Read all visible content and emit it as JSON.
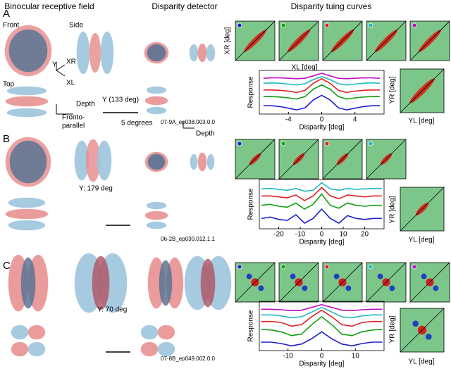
{
  "headers": [
    "Binocular receptive field",
    "Disparity detector",
    "Disparity tuing curves"
  ],
  "panels": [
    {
      "label": "A",
      "views": [
        "Front",
        "Side",
        "Top"
      ],
      "axes": [
        "Y",
        "XR",
        "XL"
      ],
      "yaw": "Y (133 deg)",
      "depth": [
        "Depth",
        "Depth"
      ],
      "fronto": [
        "Fronto-",
        "parallel"
      ],
      "scale": "5 degrees",
      "cell": "07-9A_ep038.003.0.0",
      "map_labels": [
        "XR [deg]",
        "XL [deg]",
        "YR [deg]",
        "YL [deg]"
      ]
    },
    {
      "label": "B",
      "yaw": "Y: 179 deg",
      "cell": "06-2B_ep030.012.1.1",
      "map_labels": [
        "YR [deg]",
        "YL [deg]"
      ]
    },
    {
      "label": "C",
      "yaw": "Y: 70 deg",
      "cell": "07-8B_ep049.002.0.0",
      "map_labels": [
        "YR [deg]",
        "YL [deg]"
      ]
    }
  ],
  "chart_data": [
    {
      "type": "line",
      "xlabel": "Disparity [deg]",
      "ylabel": "Response",
      "xlim": [
        -7.5,
        7.5
      ],
      "xticks": [
        -4,
        0,
        4
      ],
      "ylim": [
        0,
        1.05
      ],
      "x": [
        -7,
        -6,
        -5,
        -4,
        -3,
        -2,
        -1,
        0,
        1,
        2,
        3,
        4,
        5,
        6,
        7
      ],
      "series": [
        {
          "color": "#c010c0",
          "values": [
            0.86,
            0.87,
            0.87,
            0.86,
            0.85,
            0.86,
            0.92,
            0.98,
            0.92,
            0.86,
            0.85,
            0.86,
            0.87,
            0.87,
            0.86
          ]
        },
        {
          "color": "#20b8c0",
          "values": [
            0.74,
            0.75,
            0.74,
            0.72,
            0.7,
            0.73,
            0.83,
            0.9,
            0.83,
            0.73,
            0.7,
            0.72,
            0.74,
            0.75,
            0.74
          ]
        },
        {
          "color": "#e02020",
          "values": [
            0.58,
            0.58,
            0.57,
            0.55,
            0.52,
            0.57,
            0.74,
            0.85,
            0.74,
            0.57,
            0.52,
            0.55,
            0.57,
            0.58,
            0.58
          ]
        },
        {
          "color": "#10a010",
          "values": [
            0.42,
            0.42,
            0.41,
            0.39,
            0.36,
            0.42,
            0.6,
            0.7,
            0.6,
            0.42,
            0.36,
            0.39,
            0.41,
            0.42,
            0.42
          ]
        },
        {
          "color": "#2020d0",
          "values": [
            0.2,
            0.2,
            0.18,
            0.14,
            0.1,
            0.15,
            0.34,
            0.45,
            0.34,
            0.15,
            0.1,
            0.14,
            0.18,
            0.2,
            0.2
          ]
        }
      ]
    },
    {
      "type": "line",
      "xlabel": "Disparity [deg]",
      "ylabel": "Response",
      "xlim": [
        -29,
        29
      ],
      "xticks": [
        -20,
        -10,
        0,
        10,
        20
      ],
      "ylim": [
        0,
        1.05
      ],
      "x": [
        -28,
        -24,
        -20,
        -16,
        -12,
        -8,
        -4,
        0,
        4,
        8,
        12,
        16,
        20,
        24,
        28
      ],
      "series": [
        {
          "color": "#20b8c0",
          "values": [
            0.85,
            0.86,
            0.84,
            0.82,
            0.86,
            0.8,
            0.82,
            0.98,
            0.85,
            0.82,
            0.86,
            0.84,
            0.85,
            0.86,
            0.86
          ]
        },
        {
          "color": "#e02020",
          "values": [
            0.7,
            0.7,
            0.68,
            0.66,
            0.72,
            0.6,
            0.7,
            0.88,
            0.7,
            0.64,
            0.72,
            0.7,
            0.68,
            0.7,
            0.7
          ]
        },
        {
          "color": "#10a010",
          "values": [
            0.5,
            0.52,
            0.48,
            0.46,
            0.55,
            0.42,
            0.52,
            0.74,
            0.5,
            0.44,
            0.55,
            0.5,
            0.48,
            0.5,
            0.5
          ]
        },
        {
          "color": "#2020d0",
          "values": [
            0.22,
            0.25,
            0.2,
            0.18,
            0.3,
            0.12,
            0.22,
            0.42,
            0.22,
            0.12,
            0.28,
            0.22,
            0.2,
            0.22,
            0.22
          ]
        }
      ]
    },
    {
      "type": "line",
      "xlabel": "Disparity [deg]",
      "ylabel": "Response",
      "xlim": [
        -18.5,
        18.5
      ],
      "xticks": [
        -10,
        0,
        10
      ],
      "ylim": [
        0,
        1.05
      ],
      "x": [
        -18,
        -15,
        -12,
        -9,
        -6,
        -3,
        0,
        3,
        6,
        9,
        12,
        15,
        18
      ],
      "series": [
        {
          "color": "#c010c0",
          "values": [
            0.88,
            0.88,
            0.87,
            0.85,
            0.86,
            0.92,
            0.98,
            0.92,
            0.86,
            0.85,
            0.87,
            0.88,
            0.88
          ]
        },
        {
          "color": "#20b8c0",
          "values": [
            0.76,
            0.76,
            0.74,
            0.7,
            0.72,
            0.82,
            0.92,
            0.82,
            0.72,
            0.7,
            0.74,
            0.76,
            0.76
          ]
        },
        {
          "color": "#e02020",
          "values": [
            0.62,
            0.62,
            0.6,
            0.52,
            0.55,
            0.72,
            0.86,
            0.72,
            0.55,
            0.52,
            0.6,
            0.62,
            0.62
          ]
        },
        {
          "color": "#10a010",
          "values": [
            0.45,
            0.44,
            0.4,
            0.32,
            0.35,
            0.55,
            0.72,
            0.55,
            0.35,
            0.32,
            0.4,
            0.44,
            0.45
          ]
        },
        {
          "color": "#2020d0",
          "values": [
            0.18,
            0.18,
            0.15,
            0.1,
            0.14,
            0.25,
            0.4,
            0.25,
            0.14,
            0.1,
            0.15,
            0.18,
            0.18
          ]
        }
      ]
    }
  ]
}
